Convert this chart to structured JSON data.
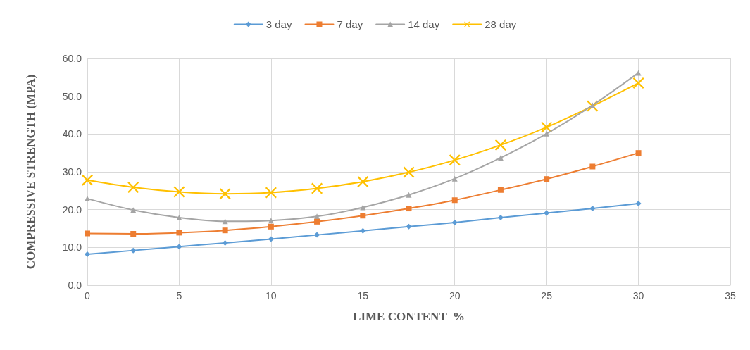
{
  "chart_data": {
    "type": "line",
    "xlabel": "LIME CONTENT  %",
    "ylabel": "COMPRESSIVE STRENGTH (MPA)",
    "x": [
      0,
      2.5,
      5,
      7.5,
      10,
      12.5,
      15,
      17.5,
      20,
      22.5,
      25,
      27.5,
      30
    ],
    "series": [
      {
        "name": "3 day",
        "color": "#5b9bd5",
        "marker": "diamond",
        "values": [
          8.2,
          9.2,
          10.2,
          11.2,
          12.2,
          13.3,
          14.4,
          15.5,
          16.6,
          17.9,
          19.1,
          20.3,
          21.6
        ]
      },
      {
        "name": "7 day",
        "color": "#ed7d31",
        "marker": "square",
        "values": [
          13.7,
          13.6,
          13.9,
          14.5,
          15.5,
          16.8,
          18.4,
          20.3,
          22.5,
          25.2,
          28.1,
          31.4,
          35.0
        ]
      },
      {
        "name": "14 day",
        "color": "#a5a5a5",
        "marker": "triangle",
        "values": [
          22.9,
          19.9,
          17.9,
          16.9,
          17.1,
          18.2,
          20.6,
          23.9,
          28.2,
          33.7,
          40.1,
          47.6,
          56.2
        ]
      },
      {
        "name": "28 day",
        "color": "#ffc000",
        "marker": "cross",
        "values": [
          27.8,
          25.9,
          24.7,
          24.2,
          24.5,
          25.6,
          27.4,
          29.9,
          33.1,
          37.1,
          41.8,
          47.4,
          53.5
        ]
      }
    ],
    "xlim": [
      0,
      35
    ],
    "xticks": [
      0,
      5,
      10,
      15,
      20,
      25,
      30,
      35
    ],
    "ylim": [
      0,
      60
    ],
    "yticks": [
      {
        "value": 0,
        "label": "0.0"
      },
      {
        "value": 10,
        "label": "10.0"
      },
      {
        "value": 20,
        "label": "20.0"
      },
      {
        "value": 30,
        "label": "30.0"
      },
      {
        "value": 40,
        "label": "40.0"
      },
      {
        "value": 50,
        "label": "50.0"
      },
      {
        "value": 60,
        "label": "60.0"
      }
    ],
    "grid": true,
    "legend": "top"
  }
}
